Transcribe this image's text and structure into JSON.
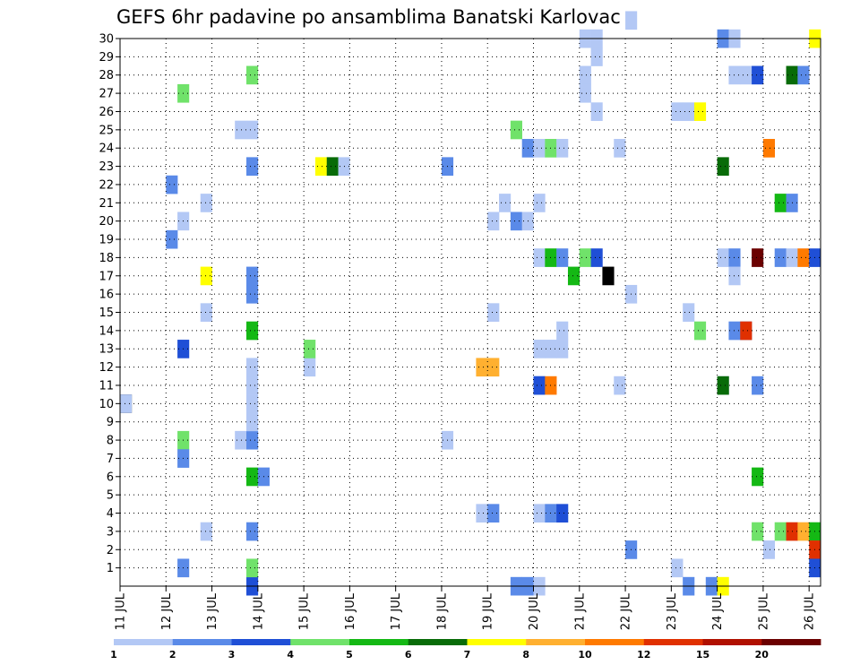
{
  "chart_data": {
    "type": "heatmap",
    "title": "GEFS 6hr padavine po ansamblima Banatski Karlovac",
    "x_tick_labels": [
      "11 JUL",
      "12 JUL",
      "13 JUL",
      "14 JUL",
      "15 JUL",
      "16 JUL",
      "17 JUL",
      "18 JUL",
      "19 JUL",
      "20 JUL",
      "21 JUL",
      "22 JUL",
      "23 JUL",
      "24 JUL",
      "25 JUL",
      "26 JUL"
    ],
    "y_tick_labels": [
      "1",
      "2",
      "3",
      "4",
      "5",
      "6",
      "7",
      "8",
      "9",
      "10",
      "11",
      "12",
      "13",
      "14",
      "15",
      "16",
      "17",
      "18",
      "19",
      "20",
      "21",
      "22",
      "23",
      "24",
      "25",
      "26",
      "27",
      "28",
      "29",
      "30"
    ],
    "xlim": [
      0,
      61
    ],
    "ylim": [
      0,
      30
    ],
    "grid": true,
    "colorbar": {
      "colors": [
        "#b3c8f5",
        "#5a8ae8",
        "#1f4fd6",
        "#70e26a",
        "#14b814",
        "#086b08",
        "#ffff00",
        "#ffb030",
        "#ff7a00",
        "#e03000",
        "#b01000",
        "#6b0000"
      ],
      "labels": [
        "1",
        "2",
        "3",
        "4",
        "5",
        "6",
        "7",
        "8",
        "10",
        "12",
        "15",
        "20"
      ]
    },
    "cells": [
      [
        0,
        0,
        10
      ],
      [
        0,
        1,
        10
      ],
      [
        42,
        23,
        17
      ],
      [
        4,
        2,
        19
      ],
      [
        4,
        2,
        22
      ],
      [
        5,
        3,
        13
      ],
      [
        5,
        2,
        1
      ],
      [
        5,
        4,
        8
      ],
      [
        5,
        2,
        7
      ],
      [
        5,
        1,
        20
      ],
      [
        5,
        4,
        27
      ],
      [
        7,
        1,
        3
      ],
      [
        7,
        1,
        15
      ],
      [
        7,
        7,
        17
      ],
      [
        7,
        1,
        21
      ],
      [
        10,
        1,
        8
      ],
      [
        10,
        1,
        25
      ],
      [
        11,
        1,
        25
      ],
      [
        11,
        3,
        0
      ],
      [
        11,
        4,
        1
      ],
      [
        11,
        2,
        3
      ],
      [
        11,
        5,
        6
      ],
      [
        11,
        2,
        8
      ],
      [
        11,
        1,
        9
      ],
      [
        11,
        1,
        10
      ],
      [
        11,
        1,
        11
      ],
      [
        11,
        1,
        12
      ],
      [
        11,
        5,
        14
      ],
      [
        11,
        2,
        16
      ],
      [
        11,
        2,
        17
      ],
      [
        11,
        2,
        23
      ],
      [
        11,
        4,
        28
      ],
      [
        12,
        2,
        6
      ],
      [
        16,
        1,
        12
      ],
      [
        16,
        4,
        13
      ],
      [
        17,
        7,
        23
      ],
      [
        18,
        6,
        23
      ],
      [
        19,
        1,
        23
      ],
      [
        28,
        2,
        23
      ],
      [
        28,
        1,
        8
      ],
      [
        31,
        1,
        4
      ],
      [
        31,
        8,
        12
      ],
      [
        32,
        2,
        4
      ],
      [
        32,
        1,
        15
      ],
      [
        32,
        8,
        12
      ],
      [
        32,
        1,
        20
      ],
      [
        33,
        1,
        21
      ],
      [
        34,
        2,
        20
      ],
      [
        35,
        1,
        20
      ],
      [
        34,
        4,
        25
      ],
      [
        34,
        2,
        0
      ],
      [
        35,
        2,
        0
      ],
      [
        36,
        1,
        0
      ],
      [
        35,
        2,
        24
      ],
      [
        36,
        2,
        11
      ],
      [
        36,
        3,
        11
      ],
      [
        37,
        9,
        11
      ],
      [
        36,
        1,
        24
      ],
      [
        37,
        4,
        24
      ],
      [
        38,
        1,
        24
      ],
      [
        36,
        1,
        21
      ],
      [
        36,
        1,
        18
      ],
      [
        37,
        5,
        18
      ],
      [
        38,
        2,
        18
      ],
      [
        36,
        1,
        13
      ],
      [
        37,
        1,
        13
      ],
      [
        38,
        1,
        13
      ],
      [
        38,
        1,
        14
      ],
      [
        36,
        1,
        4
      ],
      [
        37,
        2,
        4
      ],
      [
        38,
        3,
        4
      ],
      [
        39,
        5,
        17
      ],
      [
        40,
        1,
        30
      ],
      [
        41,
        1,
        30
      ],
      [
        40,
        1,
        28
      ],
      [
        41,
        1,
        29
      ],
      [
        40,
        1,
        27
      ],
      [
        40,
        4,
        18
      ],
      [
        41,
        3,
        18
      ],
      [
        41,
        1,
        26
      ],
      [
        43,
        1,
        24
      ],
      [
        43,
        1,
        11
      ],
      [
        44,
        2,
        2
      ],
      [
        44,
        1,
        16
      ],
      [
        44,
        1,
        31
      ],
      [
        48,
        1,
        1
      ],
      [
        48,
        1,
        26
      ],
      [
        49,
        1,
        26
      ],
      [
        50,
        7,
        26
      ],
      [
        49,
        1,
        15
      ],
      [
        50,
        4,
        14
      ],
      [
        49,
        2,
        0
      ],
      [
        51,
        2,
        0
      ],
      [
        52,
        7,
        0
      ],
      [
        52,
        2,
        30
      ],
      [
        52,
        1,
        18
      ],
      [
        52,
        1,
        11
      ],
      [
        52,
        6,
        11
      ],
      [
        53,
        2,
        18
      ],
      [
        53,
        1,
        17
      ],
      [
        53,
        2,
        14
      ],
      [
        53,
        1,
        28
      ],
      [
        53,
        1,
        30
      ],
      [
        52,
        6,
        23
      ],
      [
        54,
        2,
        14
      ],
      [
        54,
        10,
        14
      ],
      [
        54,
        1,
        28
      ],
      [
        55,
        3,
        28
      ],
      [
        55,
        12,
        18
      ],
      [
        55,
        2,
        11
      ],
      [
        55,
        5,
        6
      ],
      [
        55,
        4,
        3
      ],
      [
        56,
        1,
        2
      ],
      [
        56,
        9,
        24
      ],
      [
        57,
        5,
        21
      ],
      [
        58,
        2,
        21
      ],
      [
        57,
        2,
        18
      ],
      [
        58,
        1,
        18
      ],
      [
        59,
        9,
        18
      ],
      [
        60,
        3,
        18
      ],
      [
        57,
        4,
        3
      ],
      [
        58,
        10,
        3
      ],
      [
        59,
        8,
        3
      ],
      [
        60,
        5,
        3
      ],
      [
        60,
        10,
        2
      ],
      [
        60,
        3,
        1
      ],
      [
        60,
        7,
        30
      ],
      [
        58,
        6,
        28
      ],
      [
        59,
        2,
        28
      ]
    ]
  }
}
